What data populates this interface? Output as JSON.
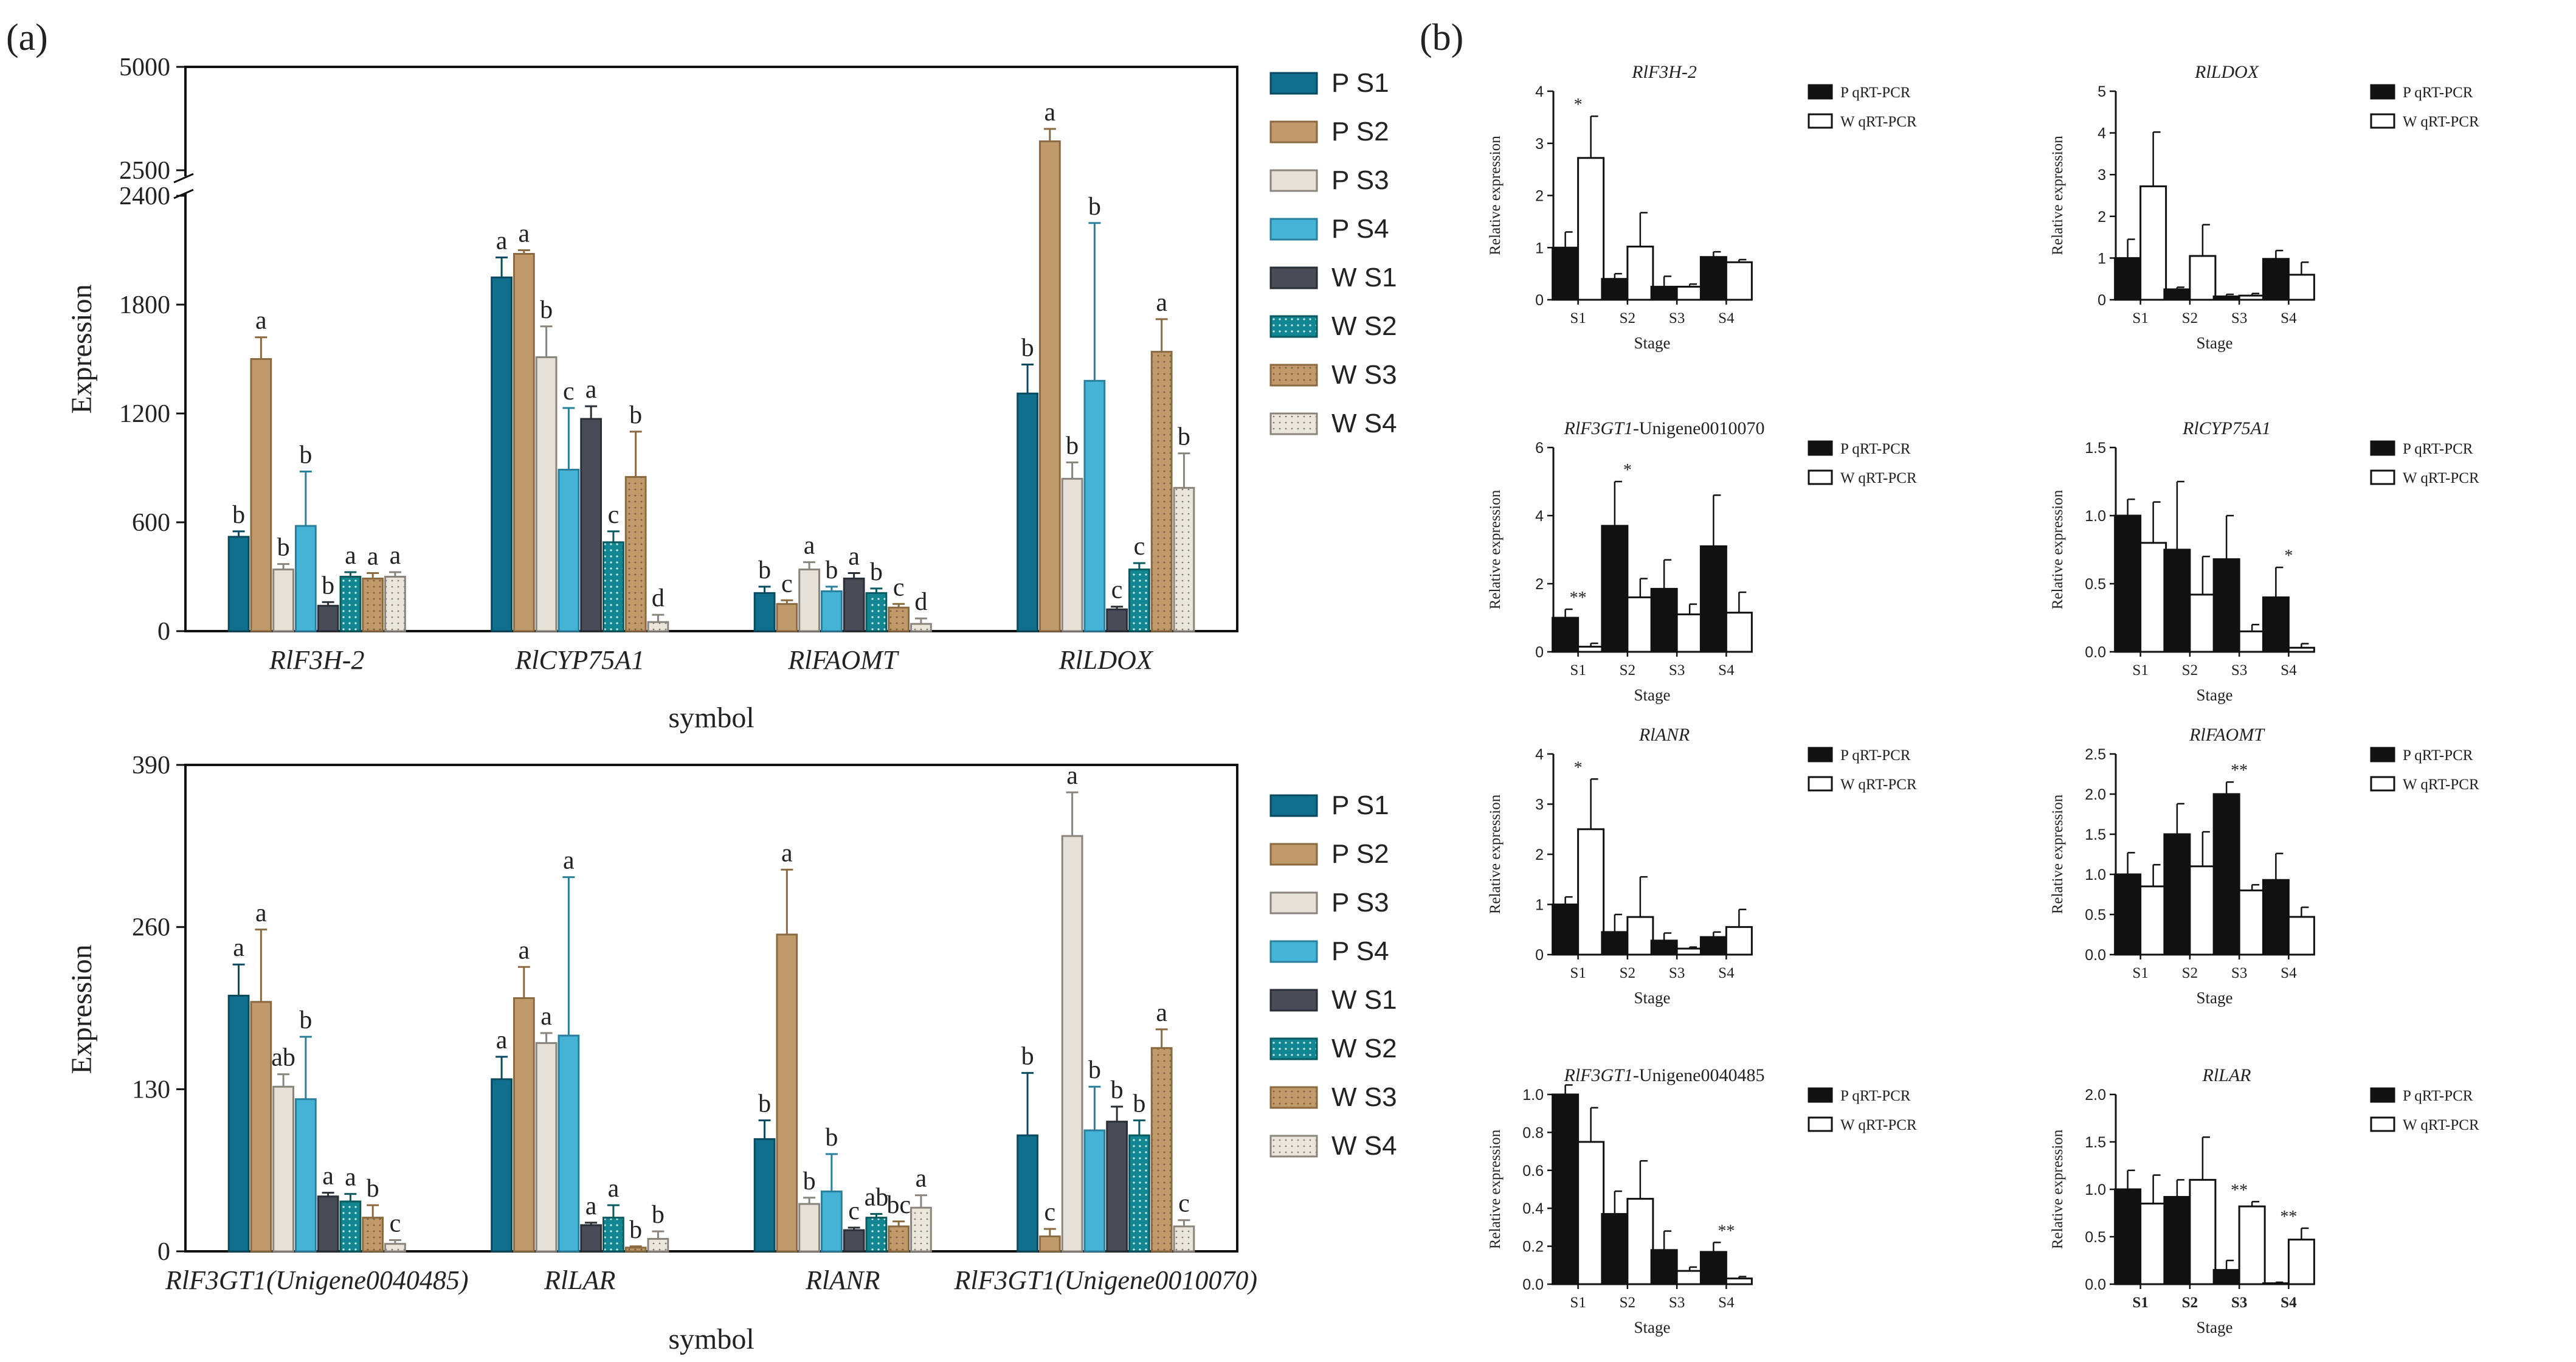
{
  "panel_labels": {
    "a": "(a)",
    "b": "(b)"
  },
  "colors": {
    "P S1": "#0f6f8c",
    "P S2": "#c19a6b",
    "P S3": "#e5e0d8",
    "P S4": "#45b3d6",
    "W S1": "#474c56",
    "W S2": "#128791",
    "W S3": "#c19a6b",
    "W S4": "#ebe6dc",
    "p_qrt": "#111111",
    "w_qrt": "#ffffff"
  },
  "legend_a": [
    "P S1",
    "P S2",
    "P S3",
    "P S4",
    "W S1",
    "W S2",
    "W S3",
    "W S4"
  ],
  "chart_data": [
    {
      "id": "a1",
      "type": "bar",
      "ylabel": "Expression",
      "xlabel": "symbol",
      "broken_axis": {
        "lower": [
          0,
          2400
        ],
        "upper": [
          2500,
          5000
        ]
      },
      "yticks": [
        "0",
        "600",
        "1200",
        "1800",
        "2400",
        "2500",
        "5000"
      ],
      "categories": [
        "RlF3H-2",
        "RlCYP75A1",
        "RlFAOMT",
        "RlLDOX"
      ],
      "series": [
        {
          "name": "P S1",
          "values": [
            520,
            1950,
            210,
            1310
          ],
          "errors": [
            30,
            110,
            35,
            160
          ],
          "letters": [
            "b",
            "a",
            "b",
            "b"
          ]
        },
        {
          "name": "P S2",
          "values": [
            1500,
            2080,
            150,
            3200
          ],
          "errors": [
            120,
            20,
            20,
            300
          ],
          "letters": [
            "a",
            "a",
            "c",
            "a"
          ]
        },
        {
          "name": "P S3",
          "values": [
            340,
            1510,
            340,
            840
          ],
          "errors": [
            30,
            170,
            40,
            90
          ],
          "letters": [
            "b",
            "b",
            "a",
            "b"
          ]
        },
        {
          "name": "P S4",
          "values": [
            580,
            890,
            220,
            1380
          ],
          "errors": [
            300,
            340,
            25,
            870
          ],
          "letters": [
            "b",
            "c",
            "b",
            "b"
          ]
        },
        {
          "name": "W S1",
          "values": [
            140,
            1170,
            290,
            120
          ],
          "errors": [
            20,
            70,
            30,
            15
          ],
          "letters": [
            "b",
            "a",
            "a",
            "c"
          ]
        },
        {
          "name": "W S2",
          "values": [
            300,
            490,
            210,
            340
          ],
          "errors": [
            25,
            60,
            25,
            35
          ],
          "letters": [
            "a",
            "c",
            "b",
            "c"
          ]
        },
        {
          "name": "W S3",
          "values": [
            290,
            850,
            130,
            1540
          ],
          "errors": [
            30,
            250,
            20,
            180
          ],
          "letters": [
            "a",
            "b",
            "c",
            "a"
          ]
        },
        {
          "name": "W S4",
          "values": [
            300,
            50,
            40,
            790
          ],
          "errors": [
            25,
            40,
            30,
            190
          ],
          "letters": [
            "a",
            "d",
            "d",
            "b"
          ]
        }
      ]
    },
    {
      "id": "a2",
      "type": "bar",
      "ylabel": "Expression",
      "xlabel": "symbol",
      "ylim": [
        0,
        390
      ],
      "yticks": [
        0,
        130,
        260,
        390
      ],
      "categories": [
        "RlF3GT1(Unigene0040485)",
        "RlLAR",
        "RlANR",
        "RlF3GT1(Unigene0010070)"
      ],
      "series": [
        {
          "name": "P S1",
          "values": [
            205,
            138,
            90,
            93
          ],
          "errors": [
            25,
            18,
            15,
            50
          ],
          "letters": [
            "a",
            "a",
            "b",
            "b"
          ]
        },
        {
          "name": "P S2",
          "values": [
            200,
            203,
            254,
            12
          ],
          "errors": [
            58,
            25,
            52,
            6
          ],
          "letters": [
            "a",
            "a",
            "a",
            "c"
          ]
        },
        {
          "name": "P S3",
          "values": [
            132,
            167,
            38,
            333
          ],
          "errors": [
            10,
            8,
            5,
            35
          ],
          "letters": [
            "ab",
            "a",
            "b",
            "a"
          ]
        },
        {
          "name": "P S4",
          "values": [
            122,
            173,
            48,
            97
          ],
          "errors": [
            50,
            127,
            30,
            35
          ],
          "letters": [
            "b",
            "a",
            "b",
            "b"
          ]
        },
        {
          "name": "W S1",
          "values": [
            44,
            21,
            17,
            104
          ],
          "errors": [
            3,
            2,
            2,
            12
          ],
          "letters": [
            "a",
            "a",
            "c",
            "b"
          ]
        },
        {
          "name": "W S2",
          "values": [
            40,
            27,
            27,
            93
          ],
          "errors": [
            6,
            10,
            3,
            12
          ],
          "letters": [
            "a",
            "a",
            "ab",
            "b"
          ]
        },
        {
          "name": "W S3",
          "values": [
            27,
            3,
            20,
            163
          ],
          "errors": [
            10,
            1,
            4,
            15
          ],
          "letters": [
            "b",
            "b",
            "bc",
            "a"
          ]
        },
        {
          "name": "W S4",
          "values": [
            6,
            10,
            35,
            20
          ],
          "errors": [
            3,
            6,
            10,
            5
          ],
          "letters": [
            "c",
            "b",
            "a",
            "c"
          ]
        }
      ]
    },
    {
      "id": "b1",
      "type": "bar",
      "title": "RlF3H-2",
      "ylabel": "Relative expression",
      "xlabel": "Stage",
      "categories": [
        "S1",
        "S2",
        "S3",
        "S4"
      ],
      "ylim": [
        0,
        4
      ],
      "yticks": [
        "0",
        "1",
        "2",
        "3",
        "4"
      ],
      "series": [
        {
          "name": "P qRT-PCR",
          "values": [
            1.0,
            0.4,
            0.25,
            0.82
          ],
          "errors": [
            0.3,
            0.1,
            0.2,
            0.1
          ]
        },
        {
          "name": "W qRT-PCR",
          "values": [
            2.72,
            1.02,
            0.25,
            0.72
          ],
          "errors": [
            0.8,
            0.65,
            0.05,
            0.05
          ]
        }
      ],
      "sig": [
        "*",
        "",
        "",
        ""
      ]
    },
    {
      "id": "b2",
      "type": "bar",
      "title": "RlLDOX",
      "ylabel": "Relative expression",
      "xlabel": "Stage",
      "categories": [
        "S1",
        "S2",
        "S3",
        "S4"
      ],
      "ylim": [
        0,
        5
      ],
      "yticks": [
        "0",
        "1",
        "2",
        "3",
        "4",
        "5"
      ],
      "series": [
        {
          "name": "P qRT-PCR",
          "values": [
            1.0,
            0.25,
            0.08,
            0.98
          ],
          "errors": [
            0.45,
            0.05,
            0.05,
            0.2
          ]
        },
        {
          "name": "W qRT-PCR",
          "values": [
            2.72,
            1.05,
            0.1,
            0.6
          ],
          "errors": [
            1.3,
            0.75,
            0.05,
            0.3
          ]
        }
      ],
      "sig": [
        "",
        "",
        "",
        ""
      ]
    },
    {
      "id": "b3",
      "type": "bar",
      "title": "RlF3GT1-Unigene0010070",
      "ylabel": "Relative expression",
      "xlabel": "Stage",
      "categories": [
        "S1",
        "S2",
        "S3",
        "S4"
      ],
      "ylim": [
        0,
        6
      ],
      "yticks": [
        "0",
        "2",
        "4",
        "6"
      ],
      "series": [
        {
          "name": "P qRT-PCR",
          "values": [
            1.0,
            3.7,
            1.85,
            3.1
          ],
          "errors": [
            0.25,
            1.3,
            0.85,
            1.5
          ]
        },
        {
          "name": "W qRT-PCR",
          "values": [
            0.15,
            1.6,
            1.1,
            1.15
          ],
          "errors": [
            0.1,
            0.55,
            0.3,
            0.6
          ]
        }
      ],
      "sig": [
        "**",
        "*",
        "",
        ""
      ]
    },
    {
      "id": "b4",
      "type": "bar",
      "title": "RlCYP75A1",
      "ylabel": "Relative expression",
      "xlabel": "Stage",
      "categories": [
        "S1",
        "S2",
        "S3",
        "S4"
      ],
      "ylim": [
        0,
        1.5
      ],
      "yticks": [
        "0.0",
        "0.5",
        "1.0",
        "1.5"
      ],
      "series": [
        {
          "name": "P qRT-PCR",
          "values": [
            1.0,
            0.75,
            0.68,
            0.4
          ],
          "errors": [
            0.12,
            0.5,
            0.32,
            0.22
          ]
        },
        {
          "name": "W qRT-PCR",
          "values": [
            0.8,
            0.42,
            0.15,
            0.03
          ],
          "errors": [
            0.3,
            0.28,
            0.05,
            0.03
          ]
        }
      ],
      "sig": [
        "",
        "",
        "",
        "*"
      ]
    },
    {
      "id": "b5",
      "type": "bar",
      "title": "RlANR",
      "ylabel": "Relative expression",
      "xlabel": "Stage",
      "categories": [
        "S1",
        "S2",
        "S3",
        "S4"
      ],
      "ylim": [
        0,
        4
      ],
      "yticks": [
        "0",
        "1",
        "2",
        "3",
        "4"
      ],
      "series": [
        {
          "name": "P qRT-PCR",
          "values": [
            1.0,
            0.45,
            0.28,
            0.35
          ],
          "errors": [
            0.15,
            0.35,
            0.15,
            0.1
          ]
        },
        {
          "name": "W qRT-PCR",
          "values": [
            2.5,
            0.75,
            0.12,
            0.55
          ],
          "errors": [
            1.0,
            0.8,
            0.03,
            0.35
          ]
        }
      ],
      "sig": [
        "*",
        "",
        "",
        ""
      ]
    },
    {
      "id": "b6",
      "type": "bar",
      "title": "RlFAOMT",
      "ylabel": "Relative expression",
      "xlabel": "Stage",
      "categories": [
        "S1",
        "S2",
        "S3",
        "S4"
      ],
      "ylim": [
        0,
        2.5
      ],
      "yticks": [
        "0.0",
        "0.5",
        "1.0",
        "1.5",
        "2.0",
        "2.5"
      ],
      "series": [
        {
          "name": "P qRT-PCR",
          "values": [
            1.0,
            1.5,
            2.0,
            0.93
          ],
          "errors": [
            0.27,
            0.38,
            0.15,
            0.33
          ]
        },
        {
          "name": "W qRT-PCR",
          "values": [
            0.85,
            1.1,
            0.8,
            0.47
          ],
          "errors": [
            0.27,
            0.43,
            0.07,
            0.12
          ]
        }
      ],
      "sig": [
        "",
        "",
        "**",
        ""
      ]
    },
    {
      "id": "b7",
      "type": "bar",
      "title": "RlF3GT1-Unigene0040485",
      "ylabel": "Relative expression",
      "xlabel": "Stage",
      "categories": [
        "S1",
        "S2",
        "S3",
        "S4"
      ],
      "ylim": [
        0,
        1.0
      ],
      "yticks": [
        "0.0",
        "0.2",
        "0.4",
        "0.6",
        "0.8",
        "1.0"
      ],
      "series": [
        {
          "name": "P qRT-PCR",
          "values": [
            1.0,
            0.37,
            0.18,
            0.17
          ],
          "errors": [
            0.18,
            0.12,
            0.1,
            0.05
          ]
        },
        {
          "name": "W qRT-PCR",
          "values": [
            0.75,
            0.45,
            0.07,
            0.03
          ],
          "errors": [
            0.18,
            0.2,
            0.02,
            0.01
          ]
        }
      ],
      "sig": [
        "",
        "",
        "",
        "**"
      ]
    },
    {
      "id": "b8",
      "type": "bar",
      "title": "RlLAR",
      "ylabel": "Relative expression",
      "xlabel": "Stage",
      "categories": [
        "S1",
        "S2",
        "S3",
        "S4"
      ],
      "ylim": [
        0,
        2.0
      ],
      "yticks": [
        "0.0",
        "0.5",
        "1.0",
        "1.5",
        "2.0"
      ],
      "series": [
        {
          "name": "P qRT-PCR",
          "values": [
            1.0,
            0.92,
            0.15,
            0.01
          ],
          "errors": [
            0.2,
            0.18,
            0.1,
            0.01
          ]
        },
        {
          "name": "W qRT-PCR",
          "values": [
            0.85,
            1.1,
            0.82,
            0.47
          ],
          "errors": [
            0.3,
            0.45,
            0.05,
            0.12
          ]
        }
      ],
      "sig": [
        "",
        "",
        "**",
        "**"
      ]
    }
  ]
}
